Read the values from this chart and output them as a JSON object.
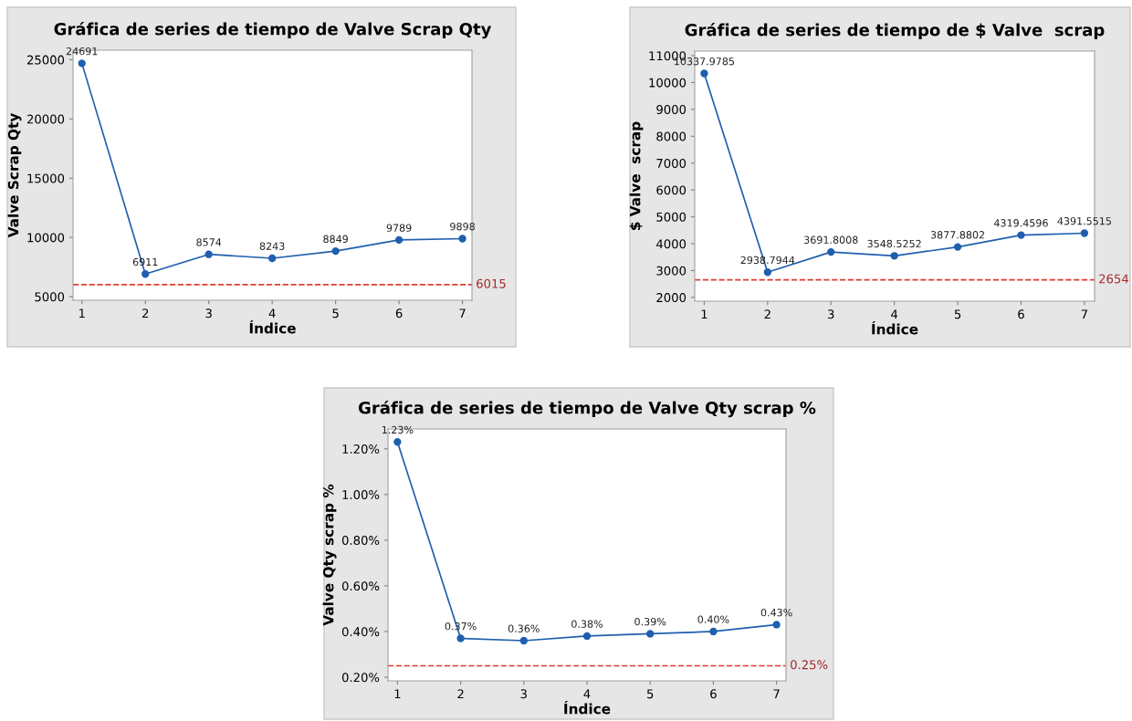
{
  "chart_data": [
    {
      "type": "line",
      "title": "Gráfica de series de tiempo de Valve Scrap Qty",
      "xlabel": "Índice",
      "ylabel": "Valve Scrap Qty",
      "x": [
        1,
        2,
        3,
        4,
        5,
        6,
        7
      ],
      "series": [
        {
          "color": "#1f5fae",
          "values": [
            24691,
            6911,
            8574,
            8243,
            8849,
            9789,
            9898
          ]
        }
      ],
      "data_labels": true,
      "marker": "circle",
      "line_style": "solid",
      "xlim": [
        0.86,
        7.15
      ],
      "xticks": [
        1,
        2,
        3,
        4,
        5,
        6,
        7
      ],
      "ylim": [
        4700,
        25800
      ],
      "yticks": [
        5000,
        10000,
        15000,
        20000,
        25000
      ],
      "ref_lines": [
        {
          "axis": "y",
          "value": 6015,
          "label": "6015",
          "color": "#e03c31",
          "line_style": "dashed"
        }
      ]
    },
    {
      "type": "line",
      "title": "Gráfica de series de tiempo de $ Valve  scrap",
      "xlabel": "Índice",
      "ylabel": "$ Valve  scrap",
      "x": [
        1,
        2,
        3,
        4,
        5,
        6,
        7
      ],
      "series": [
        {
          "color": "#1f5fae",
          "values": [
            10337.9785,
            2938.7944,
            3691.8008,
            3548.5252,
            3877.8802,
            4319.4596,
            4391.5515
          ]
        }
      ],
      "data_labels": true,
      "marker": "circle",
      "line_style": "solid",
      "xlim": [
        0.85,
        7.16
      ],
      "xticks": [
        1,
        2,
        3,
        4,
        5,
        6,
        7
      ],
      "ylim": [
        1860,
        11170
      ],
      "yticks": [
        2000,
        3000,
        4000,
        5000,
        6000,
        7000,
        8000,
        9000,
        10000,
        11000
      ],
      "ref_lines": [
        {
          "axis": "y",
          "value": 2654,
          "label": "2654",
          "color": "#e03c31",
          "line_style": "dashed"
        }
      ]
    },
    {
      "type": "line",
      "title": "Gráfica de series de tiempo de Valve Qty scrap %",
      "xlabel": "Índice",
      "ylabel": "Valve Qty scrap %",
      "x": [
        1,
        2,
        3,
        4,
        5,
        6,
        7
      ],
      "series": [
        {
          "color": "#1f5fae",
          "values": [
            1.23,
            0.37,
            0.36,
            0.38,
            0.39,
            0.4,
            0.43
          ],
          "value_labels": [
            "1.23%",
            "0.37%",
            "0.36%",
            "0.38%",
            "0.39%",
            "0.40%",
            "0.43%"
          ]
        }
      ],
      "marker": "circle",
      "line_style": "solid",
      "xlim": [
        0.85,
        7.15
      ],
      "xticks": [
        1,
        2,
        3,
        4,
        5,
        6,
        7
      ],
      "ylim": [
        0.184,
        1.287
      ],
      "yticks": [
        {
          "value": 0.2,
          "label": "0.20%"
        },
        {
          "value": 0.4,
          "label": "0.40%"
        },
        {
          "value": 0.6,
          "label": "0.60%"
        },
        {
          "value": 0.8,
          "label": "0.80%"
        },
        {
          "value": 1.0,
          "label": "1.00%"
        },
        {
          "value": 1.2,
          "label": "1.20%"
        }
      ],
      "ref_lines": [
        {
          "axis": "y",
          "value": 0.25,
          "label": "0.25%",
          "color": "#e03c31",
          "line_style": "dashed"
        }
      ]
    }
  ]
}
